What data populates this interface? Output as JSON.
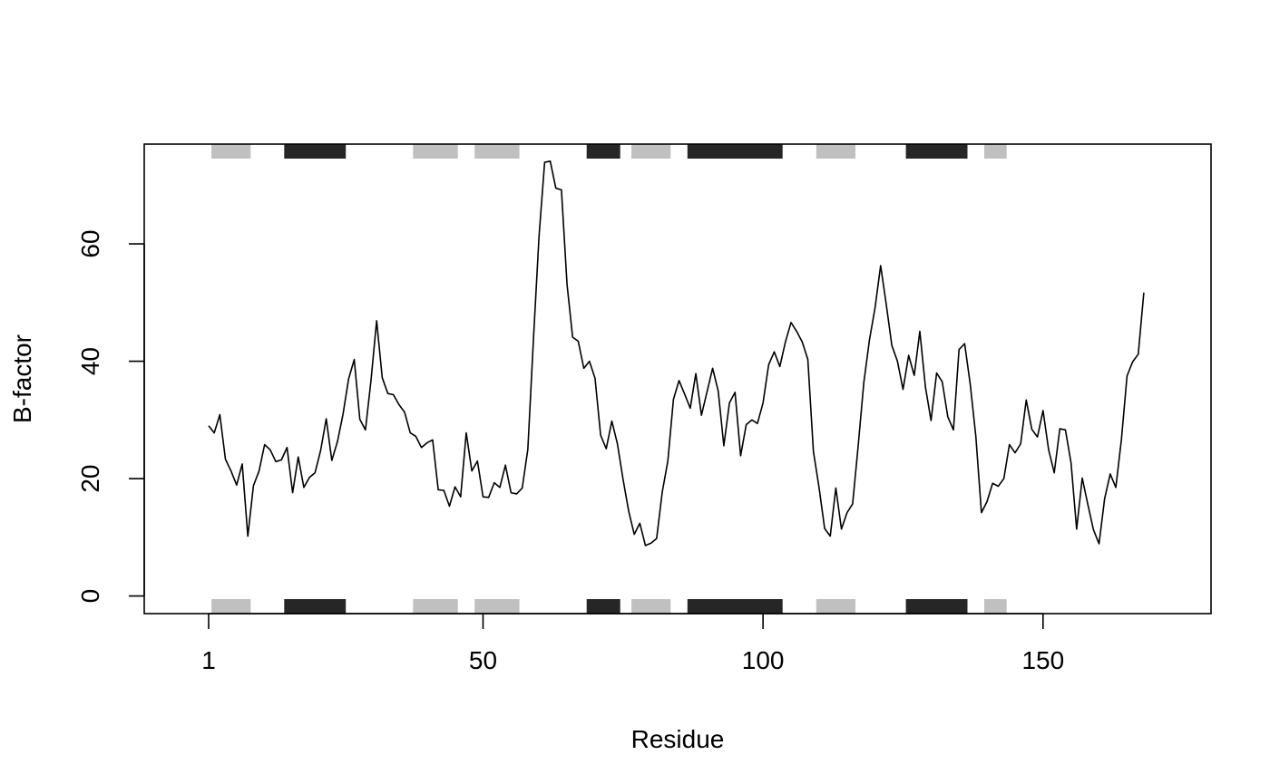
{
  "chart_data": {
    "type": "line",
    "title": "",
    "xlabel": "Residue",
    "ylabel": "B-factor",
    "xlim": [
      -10.5,
      180
    ],
    "ylim": [
      -3,
      77
    ],
    "xticks": [
      1,
      50,
      100,
      150
    ],
    "yticks": [
      0,
      20,
      40,
      60
    ],
    "grid": false,
    "series": [
      {
        "x": [
          1,
          2,
          3,
          4,
          5,
          6,
          7,
          8,
          9,
          10,
          11,
          12,
          13,
          14,
          15,
          16,
          17,
          18,
          19,
          20,
          21,
          22,
          23,
          24,
          25,
          26,
          27,
          28,
          29,
          30,
          31,
          32,
          33,
          34,
          35,
          36,
          37,
          38,
          39,
          40,
          41,
          42,
          43,
          44,
          45,
          46,
          47,
          48,
          49,
          50,
          51,
          52,
          53,
          54,
          55,
          56,
          57,
          58,
          59,
          60,
          61,
          62,
          63,
          64,
          65,
          66,
          67,
          68,
          69,
          70,
          71,
          72,
          73,
          74,
          75,
          76,
          77,
          78,
          79,
          80,
          81,
          82,
          83,
          84,
          85,
          86,
          87,
          88,
          89,
          90,
          91,
          92,
          93,
          94,
          95,
          96,
          97,
          98,
          99,
          100,
          101,
          102,
          103,
          104,
          105,
          106,
          107,
          108,
          109,
          110,
          111,
          112,
          113,
          114,
          115,
          116,
          117,
          118,
          119,
          120,
          121,
          122,
          123,
          124,
          125,
          126,
          127,
          128,
          129,
          130,
          131,
          132,
          133,
          134,
          135,
          136,
          137,
          138,
          139,
          140,
          141,
          142,
          143,
          144,
          145,
          146,
          147,
          148,
          149,
          150,
          151,
          152,
          153,
          154,
          155,
          156,
          157,
          158,
          159,
          160,
          161,
          162,
          163,
          164,
          165,
          166,
          167,
          168
        ],
        "y": [
          29.0,
          27.8,
          30.9,
          23.3,
          21.3,
          18.9,
          22.5,
          10.2,
          18.8,
          21.3,
          25.8,
          24.9,
          22.9,
          23.2,
          25.3,
          17.6,
          23.7,
          18.5,
          20.2,
          21.0,
          24.8,
          30.2,
          23.1,
          26.3,
          31.0,
          37.0,
          40.3,
          30.1,
          28.3,
          36.8,
          46.9,
          37.2,
          34.5,
          34.3,
          32.6,
          31.3,
          27.8,
          27.2,
          25.3,
          26.1,
          26.6,
          18.1,
          18.0,
          15.3,
          18.6,
          16.9,
          27.8,
          21.3,
          23.0,
          16.9,
          16.8,
          19.3,
          18.5,
          22.3,
          17.6,
          17.4,
          18.4,
          25.0,
          43.7,
          61.3,
          73.9,
          74.1,
          69.5,
          69.2,
          53.1,
          44.1,
          43.4,
          38.8,
          40.0,
          37.1,
          27.4,
          25.1,
          29.8,
          25.9,
          19.9,
          14.5,
          10.5,
          12.4,
          8.6,
          9.0,
          9.8,
          17.7,
          23.0,
          33.5,
          36.7,
          34.4,
          32.0,
          37.9,
          30.8,
          34.8,
          38.8,
          34.9,
          25.6,
          32.9,
          34.7,
          23.9,
          29.2,
          30.0,
          29.4,
          32.9,
          39.4,
          41.6,
          39.1,
          43.3,
          46.6,
          45.1,
          43.3,
          40.3,
          24.6,
          18.5,
          11.5,
          10.2,
          18.4,
          11.4,
          14.2,
          15.7,
          25.7,
          36.4,
          43.6,
          49.1,
          56.3,
          49.7,
          42.7,
          40.0,
          35.2,
          41.0,
          37.6,
          45.1,
          35.6,
          29.9,
          38.0,
          36.5,
          30.5,
          28.3,
          42.0,
          43.0,
          36.1,
          27.2,
          14.2,
          16.1,
          19.2,
          18.7,
          20.0,
          25.8,
          24.4,
          25.9,
          33.4,
          28.4,
          27.1,
          31.6,
          24.9,
          21.0,
          28.5,
          28.3,
          22.7,
          11.4,
          20.1,
          15.6,
          11.3,
          8.9,
          16.6,
          20.8,
          18.5,
          26.7,
          37.5,
          39.9,
          41.2,
          51.7
        ]
      }
    ],
    "secondary_structure": {
      "helix_color": "#262626",
      "strand_color": "#c0c0c0",
      "segments": [
        {
          "type": "strand",
          "start": 2,
          "end": 8
        },
        {
          "type": "helix",
          "start": 15,
          "end": 25
        },
        {
          "type": "strand",
          "start": 38,
          "end": 45
        },
        {
          "type": "strand",
          "start": 49,
          "end": 56
        },
        {
          "type": "helix",
          "start": 69,
          "end": 74
        },
        {
          "type": "strand",
          "start": 77,
          "end": 83
        },
        {
          "type": "helix",
          "start": 87,
          "end": 103
        },
        {
          "type": "strand",
          "start": 110,
          "end": 116
        },
        {
          "type": "helix",
          "start": 126,
          "end": 136
        },
        {
          "type": "strand",
          "start": 140,
          "end": 143
        }
      ]
    }
  }
}
